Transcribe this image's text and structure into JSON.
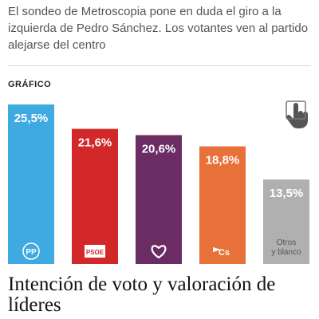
{
  "article": {
    "summary": "El sondeo de Metroscopia pone en duda el giro a la izquierda de Pedro Sánchez. Los votantes ven al partido alejarse del centro",
    "section_label": "GRÁFICO",
    "headline": "Intención de voto y valoración de líderes"
  },
  "icons": {
    "touch": "touch-hand-icon"
  },
  "chart_data": {
    "type": "bar",
    "title": "",
    "xlabel": "",
    "ylabel": "",
    "ylim": [
      0,
      25.5
    ],
    "grid": false,
    "legend": "none",
    "categories": [
      "PP",
      "PSOE",
      "Podemos",
      "Cs",
      "Otros y blanco"
    ],
    "values": [
      25.5,
      21.6,
      20.6,
      18.8,
      13.5
    ],
    "value_labels": [
      "25,5%",
      "21,6%",
      "20,6%",
      "18,8%",
      "13,5%"
    ],
    "category_labels": [
      "",
      "",
      "",
      "",
      "Otros\ny blanco"
    ],
    "colors": [
      "#3fa9e1",
      "#d2282a",
      "#6a2c63",
      "#e8713a",
      "#b0b0b0"
    ],
    "icons": [
      "pp-logo-icon",
      "psoe-logo-icon",
      "heart-icon",
      "cs-logo-icon",
      ""
    ]
  }
}
